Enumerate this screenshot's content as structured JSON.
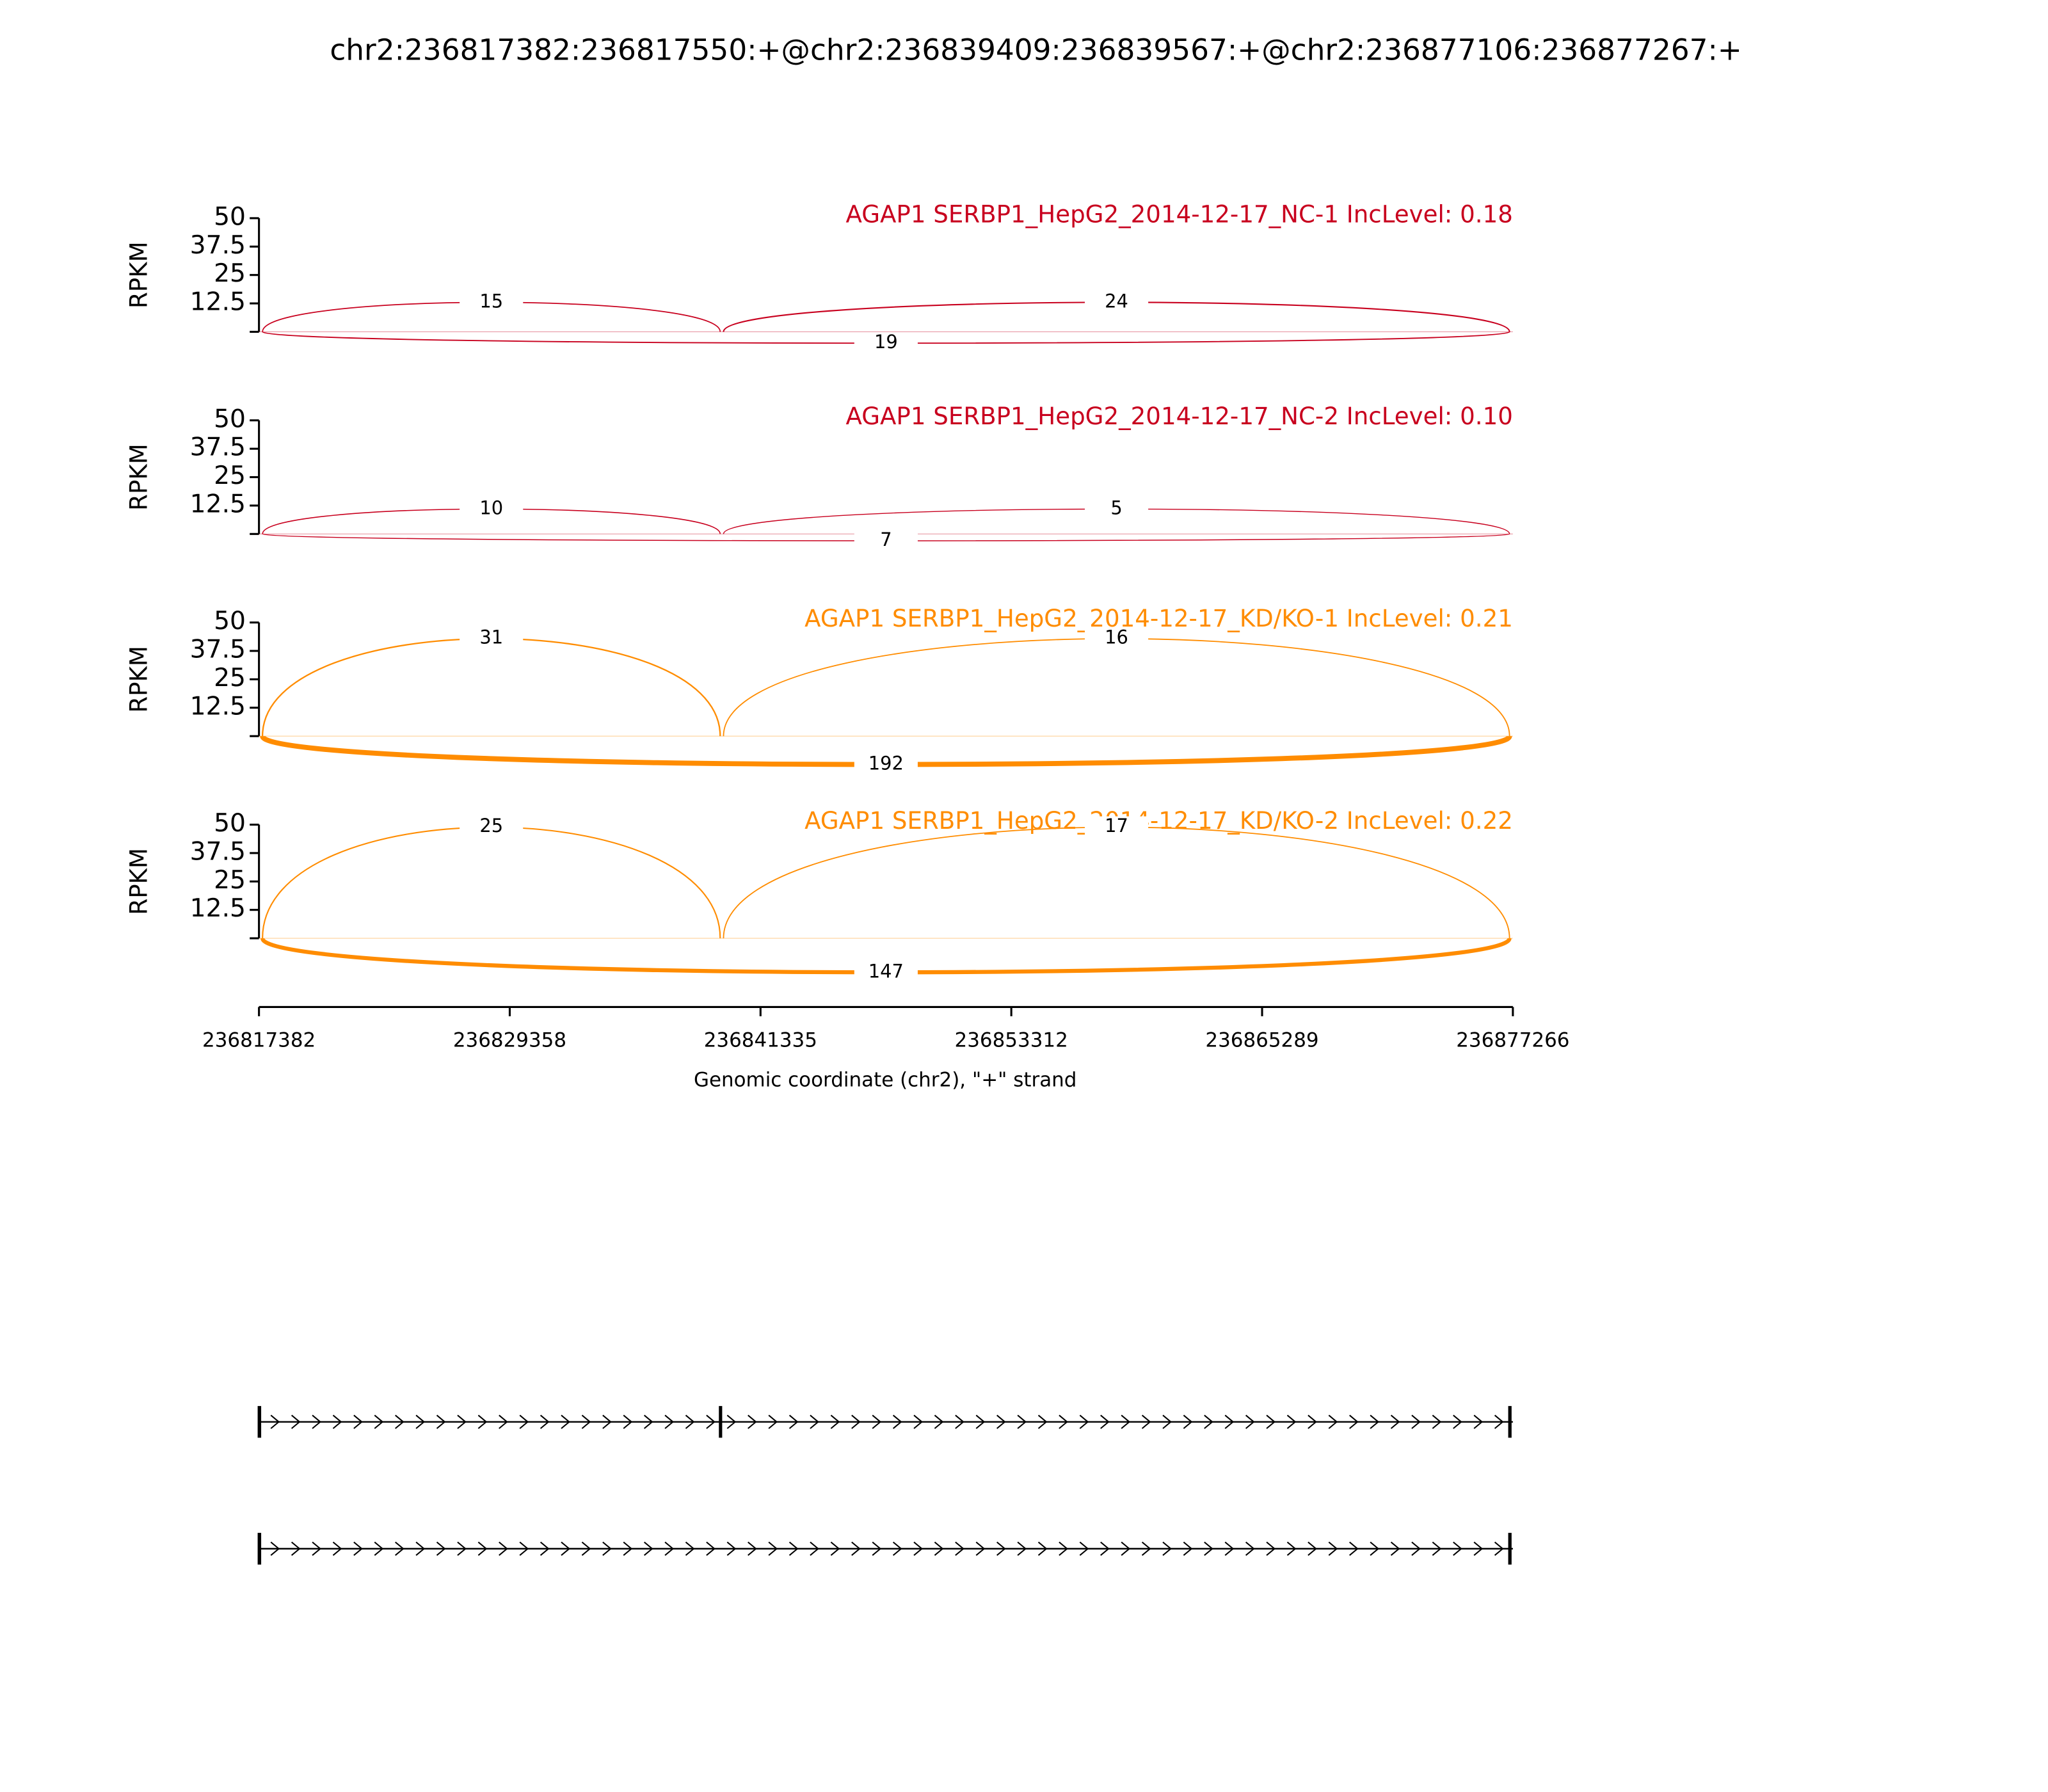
{
  "chart_data": {
    "type": "sashimi",
    "title": "chr2:236817382:236817550:+@chr2:236839409:236839567:+@chr2:236877106:236877267:+",
    "xlabel": "Genomic coordinate (chr2), \"+\" strand",
    "ylabel": "RPKM",
    "xlim": [
      236817382,
      236877266
    ],
    "xticks": [
      236817382,
      236829358,
      236841335,
      236853312,
      236865289,
      236877266
    ],
    "panels": [
      {
        "label": "AGAP1 SERBP1_HepG2_2014-12-17_NC-1 IncLevel: 0.18",
        "color": "#c8001e",
        "ylim": [
          0,
          50
        ],
        "yticks": [
          12.5,
          25,
          37.5,
          50
        ],
        "junctions": [
          {
            "start": 236817550,
            "end": 236839409,
            "count": 15
          },
          {
            "start": 236839567,
            "end": 236877106,
            "count": 24
          },
          {
            "start": 236817550,
            "end": 236877106,
            "count": 19
          }
        ]
      },
      {
        "label": "AGAP1 SERBP1_HepG2_2014-12-17_NC-2 IncLevel: 0.10",
        "color": "#c8001e",
        "ylim": [
          0,
          50
        ],
        "yticks": [
          12.5,
          25,
          37.5,
          50
        ],
        "junctions": [
          {
            "start": 236817550,
            "end": 236839409,
            "count": 10
          },
          {
            "start": 236839567,
            "end": 236877106,
            "count": 5
          },
          {
            "start": 236817550,
            "end": 236877106,
            "count": 7
          }
        ]
      },
      {
        "label": "AGAP1 SERBP1_HepG2_2014-12-17_KD/KO-1 IncLevel: 0.21",
        "color": "#ff8c00",
        "ylim": [
          0,
          50
        ],
        "yticks": [
          12.5,
          25,
          37.5,
          50
        ],
        "junctions": [
          {
            "start": 236817550,
            "end": 236839409,
            "count": 31
          },
          {
            "start": 236839567,
            "end": 236877106,
            "count": 16
          },
          {
            "start": 236817550,
            "end": 236877106,
            "count": 192
          }
        ]
      },
      {
        "label": "AGAP1 SERBP1_HepG2_2014-12-17_KD/KO-2 IncLevel: 0.22",
        "color": "#ff8c00",
        "ylim": [
          0,
          50
        ],
        "yticks": [
          12.5,
          25,
          37.5,
          50
        ],
        "junctions": [
          {
            "start": 236817550,
            "end": 236839409,
            "count": 25
          },
          {
            "start": 236839567,
            "end": 236877106,
            "count": 17
          },
          {
            "start": 236817550,
            "end": 236877106,
            "count": 147
          }
        ]
      }
    ],
    "transcripts": [
      {
        "exons": [
          [
            236817382,
            236817550
          ],
          [
            236839409,
            236839567
          ],
          [
            236877106,
            236877267
          ]
        ]
      },
      {
        "exons": [
          [
            236817382,
            236817550
          ],
          [
            236877106,
            236877267
          ]
        ]
      }
    ]
  }
}
